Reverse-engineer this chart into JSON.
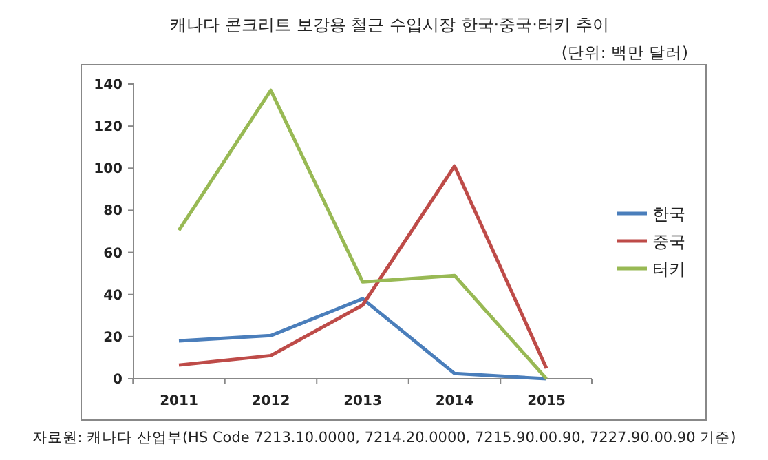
{
  "chart_data": {
    "type": "line",
    "title": "캐나다 콘크리트 보강용 철근 수입시장 한국·중국·터키 추이",
    "subtitle": "(단위: 백만 달러)",
    "annotations": [
      "자료원: 캐나다 산업부(HS Code 7213.10.0000, 7214.20.0000, 7215.90.00.90, 7227.90.00.90 기준)"
    ],
    "categories": [
      "2011",
      "2012",
      "2013",
      "2014",
      "2015"
    ],
    "series": [
      {
        "name": "한국",
        "color": "#4a7ebb",
        "values": [
          18,
          20.5,
          38,
          2.5,
          0
        ]
      },
      {
        "name": "중국",
        "color": "#be4b48",
        "values": [
          6.5,
          11,
          35,
          101,
          5
        ]
      },
      {
        "name": "터키",
        "color": "#98b954",
        "values": [
          70.5,
          137,
          46,
          49,
          0
        ]
      }
    ],
    "ylim": [
      0,
      140
    ],
    "yticks": [
      0,
      20,
      40,
      60,
      80,
      100,
      120,
      140
    ],
    "grid": false,
    "legend": "right",
    "marker": "none",
    "line_style": "solid"
  }
}
